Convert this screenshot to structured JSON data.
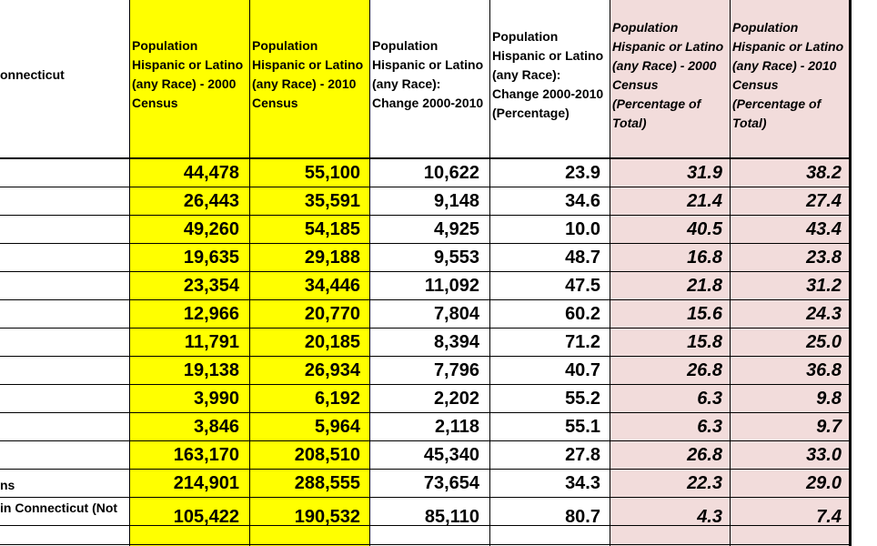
{
  "region_header": "onnecticut",
  "columns": [
    {
      "key": "pop2000",
      "header": "Population\nHispanic or Latino\n(any Race) - 2000\nCensus"
    },
    {
      "key": "pop2010",
      "header": "Population\nHispanic or Latino\n(any Race) - 2010\nCensus"
    },
    {
      "key": "change",
      "header": "Population\nHispanic or Latino\n(any Race):\nChange 2000-2010"
    },
    {
      "key": "pct_change",
      "header": "Population\nHispanic or Latino\n(any Race):\nChange 2000-2010\n(Percentage)"
    },
    {
      "key": "pct2000",
      "header": "Population\nHispanic or Latino\n(any Race) - 2000\nCensus\n(Percentage of\nTotal)"
    },
    {
      "key": "pct2010",
      "header": "Population\nHispanic or Latino\n(any Race) - 2010\nCensus\n(Percentage of\nTotal)"
    }
  ],
  "rows": [
    {
      "label": "",
      "values": [
        "44,478",
        "55,100",
        "10,622",
        "23.9",
        "31.9",
        "38.2"
      ]
    },
    {
      "label": "",
      "values": [
        "26,443",
        "35,591",
        "9,148",
        "34.6",
        "21.4",
        "27.4"
      ]
    },
    {
      "label": "",
      "values": [
        "49,260",
        "54,185",
        "4,925",
        "10.0",
        "40.5",
        "43.4"
      ]
    },
    {
      "label": "",
      "values": [
        "19,635",
        "29,188",
        "9,553",
        "48.7",
        "16.8",
        "23.8"
      ]
    },
    {
      "label": "",
      "values": [
        "23,354",
        "34,446",
        "11,092",
        "47.5",
        "21.8",
        "31.2"
      ]
    },
    {
      "label": "",
      "values": [
        "12,966",
        "20,770",
        "7,804",
        "60.2",
        "15.6",
        "24.3"
      ]
    },
    {
      "label": "",
      "values": [
        "11,791",
        "20,185",
        "8,394",
        "71.2",
        "15.8",
        "25.0"
      ]
    },
    {
      "label": "",
      "values": [
        "19,138",
        "26,934",
        "7,796",
        "40.7",
        "26.8",
        "36.8"
      ]
    },
    {
      "label": "",
      "values": [
        "3,990",
        "6,192",
        "2,202",
        "55.2",
        "6.3",
        "9.8"
      ]
    },
    {
      "label": "",
      "values": [
        "3,846",
        "5,964",
        "2,118",
        "55.1",
        "6.3",
        "9.7"
      ]
    },
    {
      "label": "",
      "values": [
        "163,170",
        "208,510",
        "45,340",
        "27.8",
        "26.8",
        "33.0"
      ]
    },
    {
      "label": "ns",
      "values": [
        "214,901",
        "288,555",
        "73,654",
        "34.3",
        "22.3",
        "29.0"
      ]
    },
    {
      "label": " in Connecticut (Not",
      "values": [
        "105,422",
        "190,532",
        "85,110",
        "80.7",
        "4.3",
        "7.4"
      ]
    }
  ],
  "colors": {
    "highlight_yellow": "#ffff00",
    "highlight_pink": "#f2dcdb",
    "grid": "#000000"
  }
}
